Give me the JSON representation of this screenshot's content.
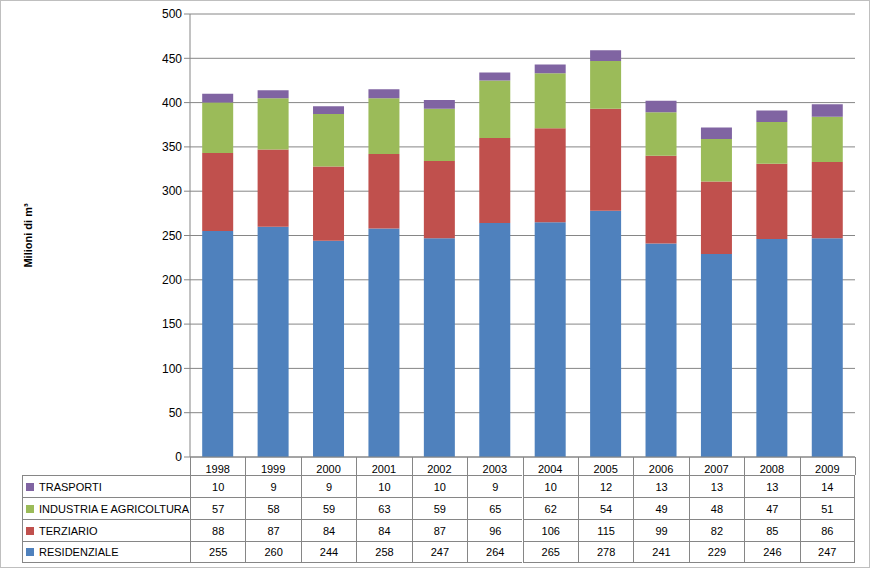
{
  "chart_data": {
    "type": "bar",
    "stacked": true,
    "y_label": "Milioni di m³",
    "categories": [
      "1998",
      "1999",
      "2000",
      "2001",
      "2002",
      "2003",
      "2004",
      "2005",
      "2006",
      "2007",
      "2008",
      "2009"
    ],
    "series": [
      {
        "name": "RESIDENZIALE",
        "color": "#4f81bd",
        "values": [
          255,
          260,
          244,
          258,
          247,
          264,
          265,
          278,
          241,
          229,
          246,
          247
        ]
      },
      {
        "name": "TERZIARIO",
        "color": "#c0504d",
        "values": [
          88,
          87,
          84,
          84,
          87,
          96,
          106,
          115,
          99,
          82,
          85,
          86
        ]
      },
      {
        "name": "INDUSTRIA E AGRICOLTURA",
        "color": "#9bbb59",
        "values": [
          57,
          58,
          59,
          63,
          59,
          65,
          62,
          54,
          49,
          48,
          47,
          51
        ]
      },
      {
        "name": "TRASPORTI",
        "color": "#8064a2",
        "values": [
          10,
          9,
          9,
          10,
          10,
          9,
          10,
          12,
          13,
          13,
          13,
          14
        ]
      }
    ],
    "ylim": [
      0,
      500
    ],
    "yticks": [
      0,
      50,
      100,
      150,
      200,
      250,
      300,
      350,
      400,
      450,
      500
    ],
    "grid": true,
    "legend": "bottom"
  }
}
